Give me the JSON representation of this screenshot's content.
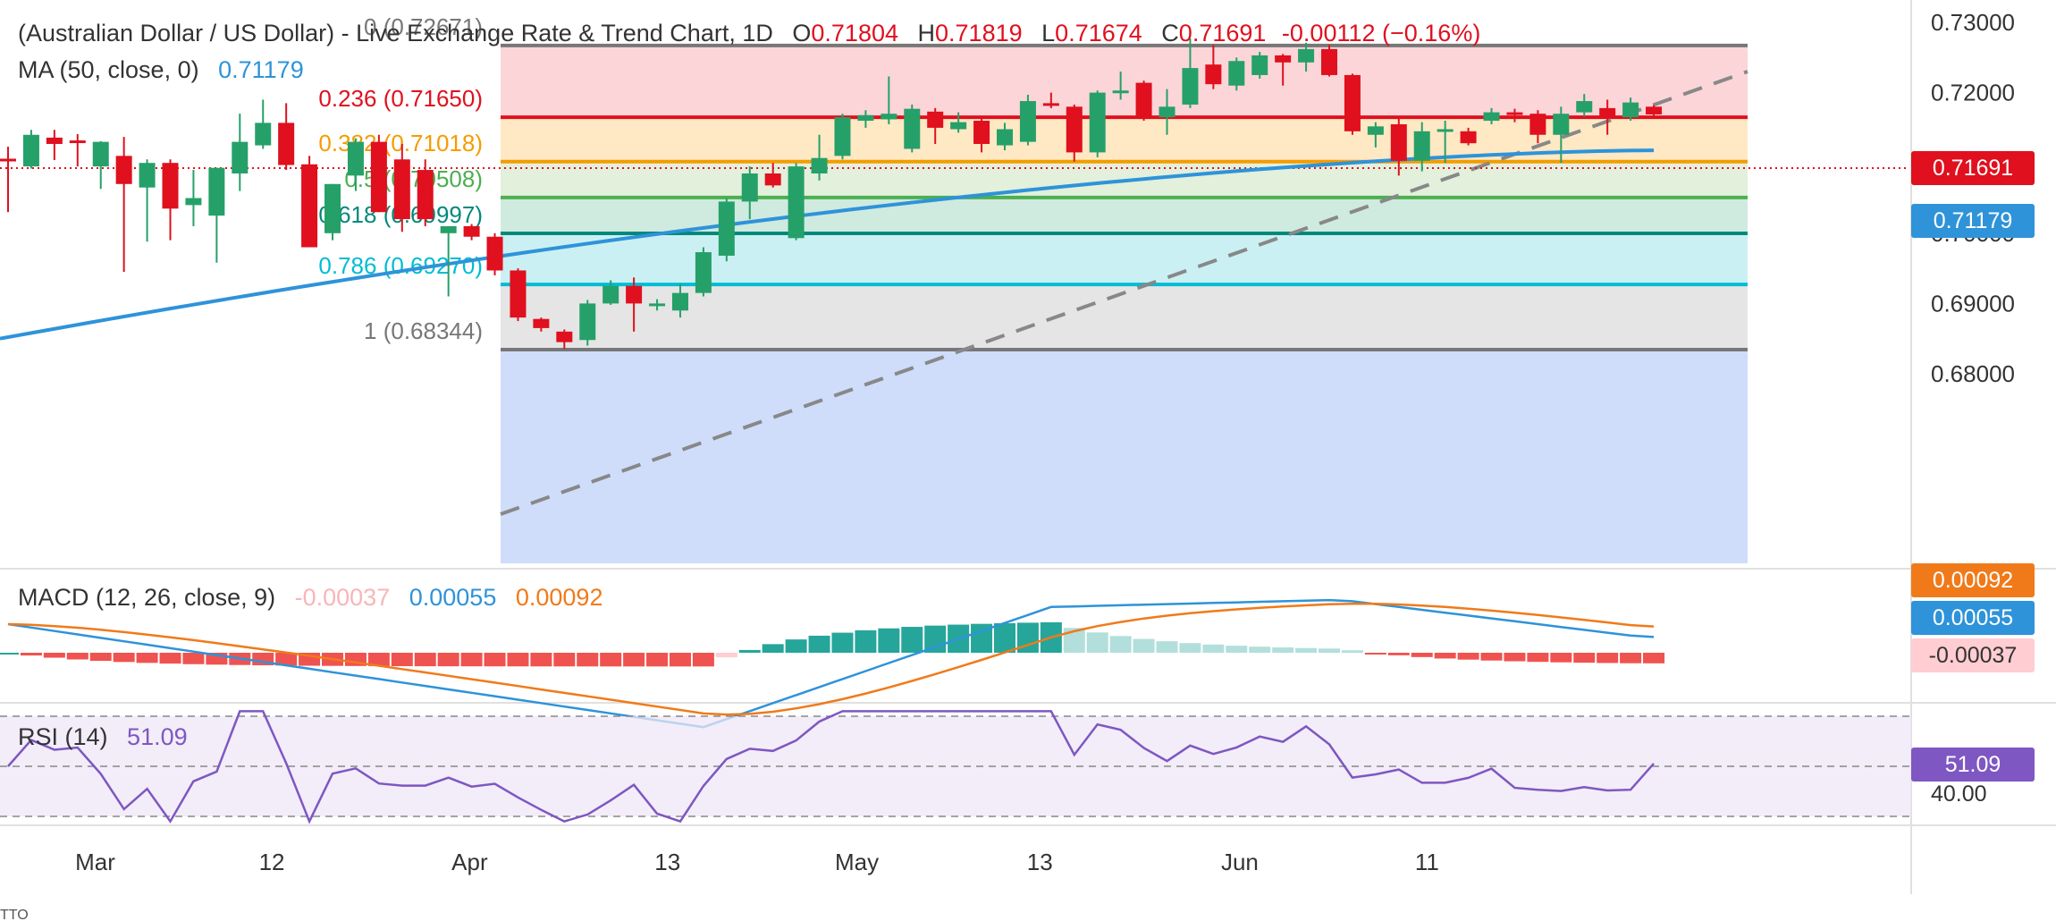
{
  "header": {
    "title": "(Australian Dollar / US Dollar) - Live Exchange Rate & Trend Chart, 1D",
    "o_label": "O",
    "o_value": "0.71804",
    "h_label": "H",
    "h_value": "0.71819",
    "l_label": "L",
    "l_value": "0.71674",
    "c_label": "C",
    "c_value": "0.71691",
    "change": "-0.00112 (−0.16%)"
  },
  "ma_legend": {
    "label": "MA (50, close, 0)",
    "value": "0.71179"
  },
  "macd_legend": {
    "label": "MACD (12, 26, close, 9)",
    "hist": "-0.00037",
    "macd": "0.00055",
    "signal": "0.00092"
  },
  "rsi_legend": {
    "label": "RSI (14)",
    "value": "51.09"
  },
  "price_tags": {
    "last": "0.71691",
    "ma": "0.71179",
    "macd_signal": "0.00092",
    "macd_line": "0.00055",
    "macd_hist": "-0.00037",
    "rsi": "51.09",
    "rsi_level": "40.00"
  },
  "colors": {
    "up": "#26a069",
    "down": "#e0101e",
    "ma": "#2e93d9",
    "macd": "#2e93d9",
    "signal": "#f07a1a",
    "rsi": "#7e57c2",
    "hist_pos_strong": "#26a69a",
    "hist_pos_weak": "#b2dfdb",
    "hist_neg_strong": "#ef5350",
    "hist_neg_weak": "#ffcdd2"
  },
  "chart_data": {
    "type": "candlestick",
    "y_axis_ticks": [
      "0.73000",
      "0.72000",
      "0.71000",
      "0.70000",
      "0.69000",
      "0.68000"
    ],
    "ylim": [
      0.6775,
      0.731
    ],
    "x_axis_ticks": [
      "Mar",
      "12",
      "Apr",
      "13",
      "May",
      "13",
      "Jun",
      "11"
    ],
    "fibonacci": [
      {
        "ratio": "0",
        "value": 0.72671,
        "label": "0 (0.72671)"
      },
      {
        "ratio": "0.236",
        "value": 0.7165,
        "label": "0.236 (0.71650)"
      },
      {
        "ratio": "0.382",
        "value": 0.71018,
        "label": "0.382 (0.71018)"
      },
      {
        "ratio": "0.5",
        "value": 0.70508,
        "label": "0.5 (0.70508)"
      },
      {
        "ratio": "0.618",
        "value": 0.69997,
        "label": "0.618 (0.69997)"
      },
      {
        "ratio": "0.786",
        "value": 0.6927,
        "label": "0.786 (0.69270)"
      },
      {
        "ratio": "1",
        "value": 0.68344,
        "label": "1 (0.68344)"
      }
    ],
    "candles": [
      {
        "o": 0.7106,
        "h": 0.7123,
        "l": 0.703,
        "c": 0.7105
      },
      {
        "o": 0.7095,
        "h": 0.7147,
        "l": 0.7092,
        "c": 0.714
      },
      {
        "o": 0.7136,
        "h": 0.7147,
        "l": 0.7104,
        "c": 0.7127
      },
      {
        "o": 0.7132,
        "h": 0.7141,
        "l": 0.7095,
        "c": 0.713
      },
      {
        "o": 0.7095,
        "h": 0.7131,
        "l": 0.7063,
        "c": 0.713
      },
      {
        "o": 0.711,
        "h": 0.7137,
        "l": 0.6945,
        "c": 0.707
      },
      {
        "o": 0.7065,
        "h": 0.7105,
        "l": 0.6988,
        "c": 0.71
      },
      {
        "o": 0.71,
        "h": 0.7105,
        "l": 0.699,
        "c": 0.7035
      },
      {
        "o": 0.704,
        "h": 0.709,
        "l": 0.701,
        "c": 0.705
      },
      {
        "o": 0.7025,
        "h": 0.7093,
        "l": 0.6958,
        "c": 0.7093
      },
      {
        "o": 0.7085,
        "h": 0.717,
        "l": 0.706,
        "c": 0.713
      },
      {
        "o": 0.7125,
        "h": 0.719,
        "l": 0.712,
        "c": 0.7157
      },
      {
        "o": 0.7157,
        "h": 0.7185,
        "l": 0.709,
        "c": 0.7097
      },
      {
        "o": 0.7098,
        "h": 0.711,
        "l": 0.698,
        "c": 0.698
      },
      {
        "o": 0.7,
        "h": 0.707,
        "l": 0.699,
        "c": 0.707
      },
      {
        "o": 0.7082,
        "h": 0.7135,
        "l": 0.706,
        "c": 0.713
      },
      {
        "o": 0.713,
        "h": 0.714,
        "l": 0.703,
        "c": 0.703
      },
      {
        "o": 0.7105,
        "h": 0.7127,
        "l": 0.7002,
        "c": 0.702
      },
      {
        "o": 0.709,
        "h": 0.7105,
        "l": 0.701,
        "c": 0.702
      },
      {
        "o": 0.7,
        "h": 0.701,
        "l": 0.691,
        "c": 0.701
      },
      {
        "o": 0.701,
        "h": 0.7013,
        "l": 0.699,
        "c": 0.6995
      },
      {
        "o": 0.6995,
        "h": 0.7,
        "l": 0.694,
        "c": 0.6947
      },
      {
        "o": 0.6947,
        "h": 0.695,
        "l": 0.6875,
        "c": 0.688
      },
      {
        "o": 0.6878,
        "h": 0.688,
        "l": 0.686,
        "c": 0.6865
      },
      {
        "o": 0.686,
        "h": 0.6863,
        "l": 0.6835,
        "c": 0.6845
      },
      {
        "o": 0.6848,
        "h": 0.6905,
        "l": 0.684,
        "c": 0.69
      },
      {
        "o": 0.69,
        "h": 0.6933,
        "l": 0.6898,
        "c": 0.6925
      },
      {
        "o": 0.6925,
        "h": 0.6937,
        "l": 0.686,
        "c": 0.69
      },
      {
        "o": 0.6897,
        "h": 0.6906,
        "l": 0.689,
        "c": 0.69
      },
      {
        "o": 0.689,
        "h": 0.6928,
        "l": 0.688,
        "c": 0.6915
      },
      {
        "o": 0.6915,
        "h": 0.698,
        "l": 0.691,
        "c": 0.6973
      },
      {
        "o": 0.6968,
        "h": 0.705,
        "l": 0.696,
        "c": 0.7045
      },
      {
        "o": 0.7045,
        "h": 0.7095,
        "l": 0.702,
        "c": 0.7085
      },
      {
        "o": 0.7085,
        "h": 0.71,
        "l": 0.7065,
        "c": 0.7068
      },
      {
        "o": 0.6993,
        "h": 0.71,
        "l": 0.699,
        "c": 0.7095
      },
      {
        "o": 0.7085,
        "h": 0.714,
        "l": 0.7075,
        "c": 0.7107
      },
      {
        "o": 0.711,
        "h": 0.717,
        "l": 0.7105,
        "c": 0.7165
      },
      {
        "o": 0.716,
        "h": 0.7175,
        "l": 0.715,
        "c": 0.7168
      },
      {
        "o": 0.7162,
        "h": 0.7223,
        "l": 0.7155,
        "c": 0.717
      },
      {
        "o": 0.712,
        "h": 0.7183,
        "l": 0.7115,
        "c": 0.7177
      },
      {
        "o": 0.7173,
        "h": 0.7178,
        "l": 0.7127,
        "c": 0.715
      },
      {
        "o": 0.7148,
        "h": 0.7172,
        "l": 0.7143,
        "c": 0.7158
      },
      {
        "o": 0.716,
        "h": 0.7165,
        "l": 0.7115,
        "c": 0.7127
      },
      {
        "o": 0.7125,
        "h": 0.7157,
        "l": 0.7118,
        "c": 0.7148
      },
      {
        "o": 0.713,
        "h": 0.7197,
        "l": 0.7125,
        "c": 0.7188
      },
      {
        "o": 0.7185,
        "h": 0.72,
        "l": 0.7178,
        "c": 0.7183
      },
      {
        "o": 0.718,
        "h": 0.7183,
        "l": 0.7102,
        "c": 0.7115
      },
      {
        "o": 0.7115,
        "h": 0.7203,
        "l": 0.7108,
        "c": 0.72
      },
      {
        "o": 0.72,
        "h": 0.723,
        "l": 0.719,
        "c": 0.7203
      },
      {
        "o": 0.7214,
        "h": 0.7217,
        "l": 0.716,
        "c": 0.7165
      },
      {
        "o": 0.7165,
        "h": 0.7205,
        "l": 0.714,
        "c": 0.718
      },
      {
        "o": 0.7183,
        "h": 0.7277,
        "l": 0.7178,
        "c": 0.7235
      },
      {
        "o": 0.724,
        "h": 0.7268,
        "l": 0.7205,
        "c": 0.7212
      },
      {
        "o": 0.721,
        "h": 0.725,
        "l": 0.7203,
        "c": 0.7245
      },
      {
        "o": 0.7225,
        "h": 0.7258,
        "l": 0.722,
        "c": 0.7253
      },
      {
        "o": 0.7253,
        "h": 0.7255,
        "l": 0.721,
        "c": 0.7243
      },
      {
        "o": 0.7243,
        "h": 0.7271,
        "l": 0.723,
        "c": 0.7262
      },
      {
        "o": 0.7262,
        "h": 0.7268,
        "l": 0.7223,
        "c": 0.7225
      },
      {
        "o": 0.7225,
        "h": 0.7227,
        "l": 0.714,
        "c": 0.7145
      },
      {
        "o": 0.714,
        "h": 0.7158,
        "l": 0.7122,
        "c": 0.7152
      },
      {
        "o": 0.7155,
        "h": 0.7165,
        "l": 0.7082,
        "c": 0.7103
      },
      {
        "o": 0.7103,
        "h": 0.7158,
        "l": 0.7088,
        "c": 0.7145
      },
      {
        "o": 0.7147,
        "h": 0.716,
        "l": 0.71,
        "c": 0.7148
      },
      {
        "o": 0.7145,
        "h": 0.715,
        "l": 0.7125,
        "c": 0.7128
      },
      {
        "o": 0.716,
        "h": 0.7178,
        "l": 0.7155,
        "c": 0.7172
      },
      {
        "o": 0.7172,
        "h": 0.7177,
        "l": 0.7158,
        "c": 0.717
      },
      {
        "o": 0.717,
        "h": 0.7175,
        "l": 0.7128,
        "c": 0.714
      },
      {
        "o": 0.714,
        "h": 0.718,
        "l": 0.71,
        "c": 0.717
      },
      {
        "o": 0.7172,
        "h": 0.7198,
        "l": 0.7166,
        "c": 0.7188
      },
      {
        "o": 0.7178,
        "h": 0.719,
        "l": 0.714,
        "c": 0.7165
      },
      {
        "o": 0.7165,
        "h": 0.7193,
        "l": 0.716,
        "c": 0.7186
      },
      {
        "o": 0.718,
        "h": 0.7182,
        "l": 0.7167,
        "c": 0.7169
      }
    ],
    "ma50_first": 0.685,
    "ma50_last": 0.71179,
    "macd_level_last": 0.00055,
    "signal_level_last": 0.00092,
    "rsi_last": 51.09,
    "rsi_reference_levels": [
      70,
      50,
      30
    ]
  }
}
